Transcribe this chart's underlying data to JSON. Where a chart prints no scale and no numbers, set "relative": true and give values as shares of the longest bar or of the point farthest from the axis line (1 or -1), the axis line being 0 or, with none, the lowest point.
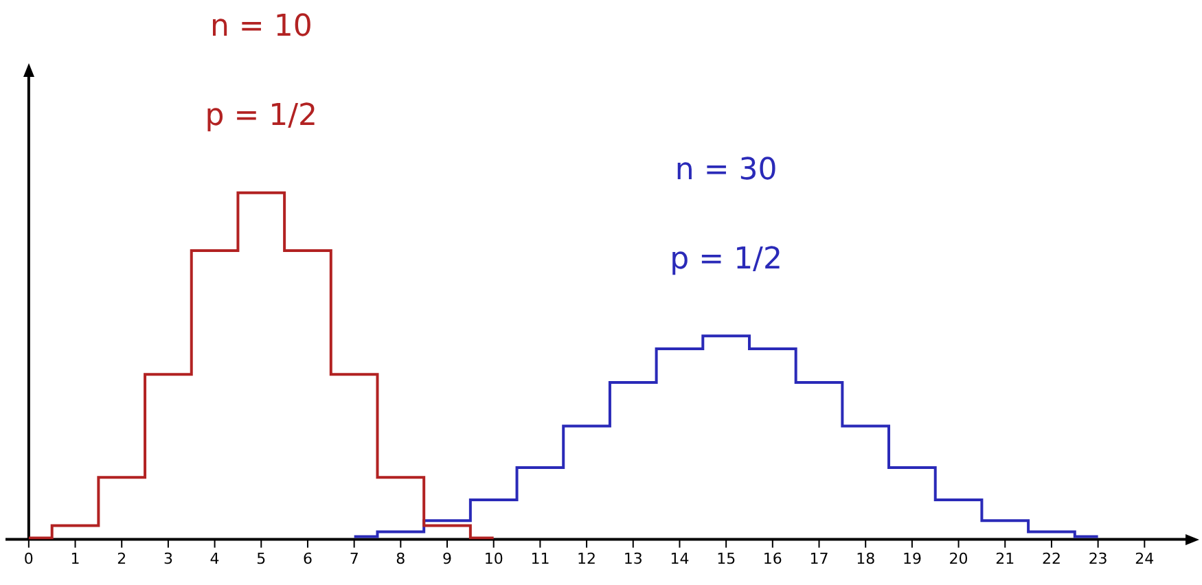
{
  "chart_data": {
    "type": "step",
    "relative": true,
    "xlim": [
      -0.5,
      25
    ],
    "xticks": [
      0,
      1,
      2,
      3,
      4,
      5,
      6,
      7,
      8,
      9,
      10,
      11,
      12,
      13,
      14,
      15,
      16,
      17,
      18,
      19,
      20,
      21,
      22,
      23,
      24
    ],
    "legend": false,
    "annotations": [
      "p = 1/2",
      "p = 1/2"
    ],
    "series": [
      {
        "name": "n = 10",
        "color": "#b22222",
        "x": [
          0,
          1,
          2,
          3,
          4,
          5,
          6,
          7,
          8,
          9,
          10
        ],
        "values": [
          0.004,
          0.04,
          0.179,
          0.476,
          0.833,
          1,
          0.833,
          0.476,
          0.179,
          0.04,
          0.004
        ]
      },
      {
        "name": "n = 30",
        "color": "#2a2ab8",
        "x": [
          7,
          8,
          9,
          10,
          11,
          12,
          13,
          14,
          15,
          16,
          17,
          18,
          19,
          20,
          21,
          22,
          23
        ],
        "values": [
          0.008,
          0.022,
          0.054,
          0.114,
          0.207,
          0.327,
          0.453,
          0.55,
          0.587,
          0.55,
          0.453,
          0.327,
          0.207,
          0.114,
          0.054,
          0.022,
          0.008
        ]
      }
    ]
  }
}
